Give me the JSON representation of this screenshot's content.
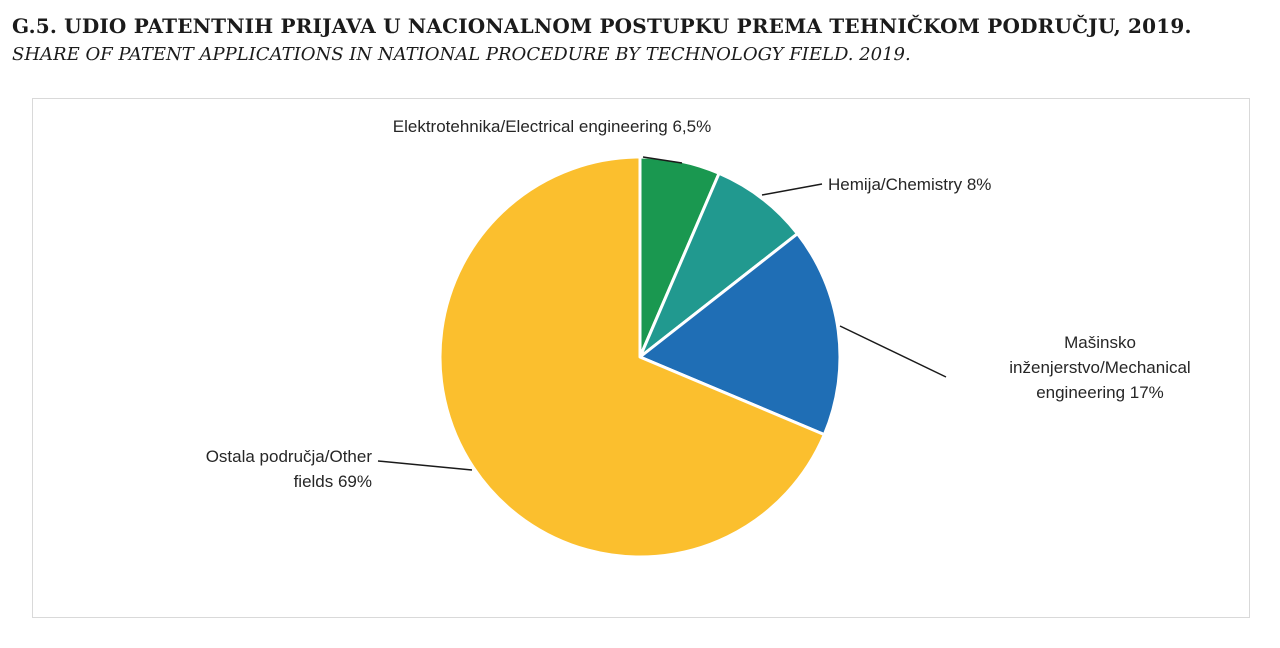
{
  "figure": {
    "title": "G.5. UDIO PATENTNIH PRIJAVA U NACIONALNOM POSTUPKU PREMA TEHNIČKOM PODRUČJU, 2019.",
    "subtitle": "SHARE OF PATENT APPLICATIONS IN NATIONAL PROCEDURE BY TECHNOLOGY FIELD. 2019."
  },
  "chart_data": {
    "type": "pie",
    "start": "12 o'clock",
    "direction": "clockwise",
    "slices": [
      {
        "name": "Elektrotehnika/Electrical engineering",
        "value": 6.5,
        "label_lines": [
          "Elektrotehnika/Electrical engineering 6,5%"
        ],
        "color": "#1a9850"
      },
      {
        "name": "Hemija/Chemistry",
        "value": 8,
        "label_lines": [
          "Hemija/Chemistry 8%"
        ],
        "color": "#21998f"
      },
      {
        "name": "Mašinsko inženjerstvo/Mechanical engineering",
        "value": 17,
        "label_lines": [
          "Mašinsko",
          "inženjerstvo/Mechanical",
          "engineering 17%"
        ],
        "color": "#1f6eb5"
      },
      {
        "name": "Ostala područja/Other fields",
        "value": 69,
        "label_lines": [
          "Ostala područja/Other",
          "fields 69%"
        ],
        "color": "#fbbf2e"
      }
    ]
  }
}
